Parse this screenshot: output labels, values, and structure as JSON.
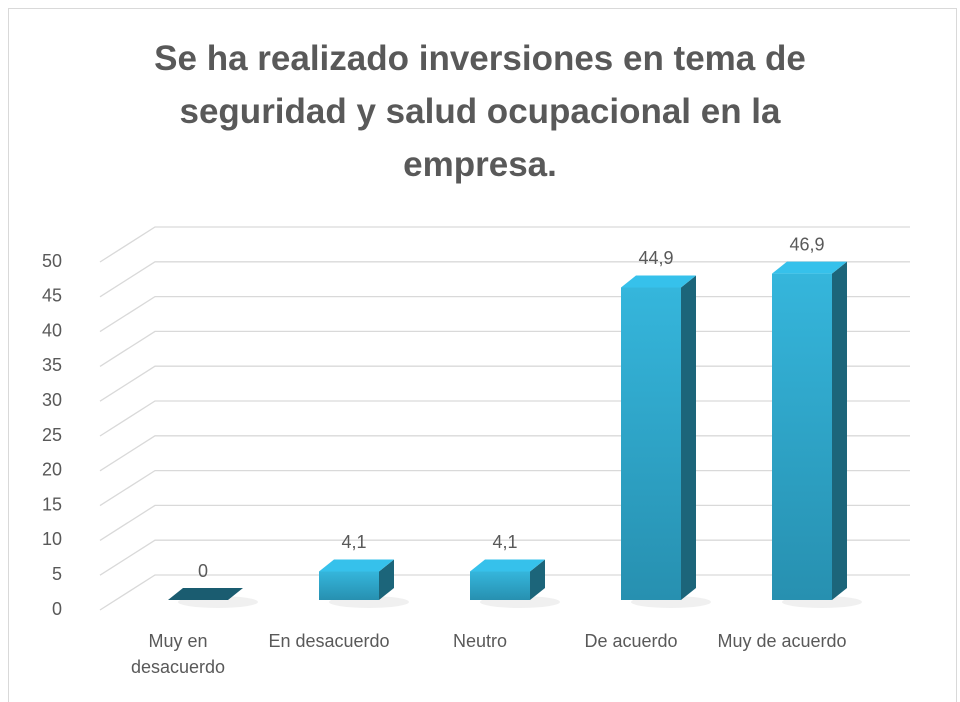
{
  "chart_data": {
    "type": "bar3d",
    "title": "Se ha realizado inversiones en tema de seguridad y salud ocupacional en la empresa.",
    "categories": [
      "Muy en desacuerdo",
      "En desacuerdo",
      "Neutro",
      "De acuerdo",
      "Muy de acuerdo"
    ],
    "values": [
      0,
      4.1,
      4.1,
      44.9,
      46.9
    ],
    "value_labels": [
      "0",
      "4,1",
      "4,1",
      "44,9",
      "46,9"
    ],
    "color": "#2fa8cc",
    "ylim": [
      0,
      50
    ],
    "yticks": [
      0,
      5,
      10,
      15,
      20,
      25,
      30,
      35,
      40,
      45,
      50
    ],
    "grid": true
  }
}
